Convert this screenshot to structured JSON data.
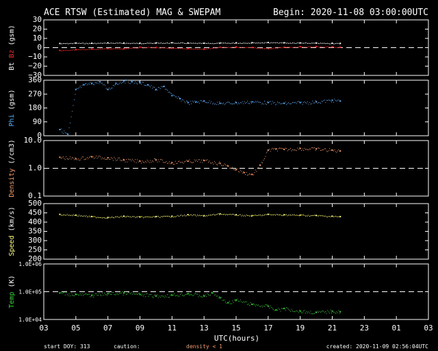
{
  "header": {
    "title": "ACE RTSW (Estimated) MAG & SWEPAM",
    "begin": "Begin: 2020-11-08 03:00:00UTC"
  },
  "footer": {
    "start_doy": "start DOY: 313",
    "caution": "caution:",
    "density_note": "density < 1",
    "created": "created: 2020-11-09 02:56:04UTC"
  },
  "colors": {
    "bt": "#ffffff",
    "bz": "#ff2020",
    "phi": "#4fb0ff",
    "density": "#ff9a5c",
    "speed": "#ffff66",
    "temp": "#22dd22",
    "axis": "#ffffff"
  },
  "chart_data": {
    "type": "scatter",
    "xlabel": "UTC(hours)",
    "x_ticks": [
      "03",
      "05",
      "07",
      "09",
      "11",
      "13",
      "15",
      "17",
      "19",
      "21",
      "23",
      "01",
      "03"
    ],
    "xlim_hours": [
      0,
      24
    ],
    "panels": [
      {
        "id": "mag",
        "ylabel_parts": [
          {
            "text": "Bt",
            "color": "#ffffff"
          },
          {
            "text": "Bz",
            "color": "#ff2020"
          },
          {
            "text": "(gsm)",
            "color": "#ffffff"
          }
        ],
        "ylim": [
          -30,
          30
        ],
        "ticks": [
          "30",
          "20",
          "10",
          "0",
          "−10",
          "−20",
          "−30"
        ],
        "tick_values": [
          30,
          20,
          10,
          0,
          -10,
          -20,
          -30
        ],
        "scale": "linear",
        "reference_line": 0,
        "series": [
          {
            "name": "Bt",
            "color": "#ffffff",
            "x": [
              1.0,
              2,
              3,
              4,
              5,
              6,
              7,
              8,
              9,
              10,
              11,
              12,
              13,
              14,
              15,
              16,
              17,
              18,
              18.5
            ],
            "y": [
              4.5,
              5,
              4.8,
              5.2,
              5,
              4.9,
              5.1,
              5.3,
              5,
              4.8,
              5,
              5.2,
              5.4,
              5.6,
              5.3,
              5.1,
              5,
              4.8,
              4.6
            ]
          },
          {
            "name": "Bz",
            "color": "#ff2020",
            "x": [
              1.0,
              2,
              3,
              4,
              5,
              6,
              7,
              8,
              9,
              10,
              11,
              12,
              13,
              14,
              15,
              16,
              17,
              18,
              18.5
            ],
            "y": [
              -3,
              -2,
              -1.5,
              -1,
              -1.2,
              0.5,
              0.2,
              -0.5,
              -1,
              -1.5,
              0.5,
              0.8,
              0.2,
              -1,
              0.5,
              1,
              1.2,
              1,
              0.5
            ]
          }
        ]
      },
      {
        "id": "phi",
        "ylabel_parts": [
          {
            "text": "Phi",
            "color": "#4fb0ff"
          },
          {
            "text": "(gsm)",
            "color": "#ffffff"
          }
        ],
        "ylim": [
          0,
          360
        ],
        "ticks": [
          "360",
          "270",
          "180",
          "90",
          "0"
        ],
        "tick_values": [
          360,
          270,
          180,
          90,
          0
        ],
        "scale": "linear",
        "series": [
          {
            "name": "Phi",
            "color": "#4fb0ff",
            "x": [
              1.0,
              1.5,
              2,
              2.5,
              3,
              3.5,
              4,
              4.5,
              5,
              5.5,
              6,
              6.5,
              7,
              7.5,
              8,
              8.5,
              9,
              9.5,
              10,
              11,
              12,
              13,
              14,
              15,
              16,
              17,
              18,
              18.5
            ],
            "y": [
              40,
              10,
              300,
              330,
              340,
              350,
              300,
              340,
              355,
              350,
              345,
              330,
              300,
              320,
              260,
              240,
              215,
              220,
              225,
              210,
              215,
              220,
              215,
              210,
              215,
              220,
              230,
              225
            ]
          }
        ]
      },
      {
        "id": "density",
        "ylabel_parts": [
          {
            "text": "Density",
            "color": "#ff9a5c"
          },
          {
            "text": "(/cm3)",
            "color": "#ffffff"
          }
        ],
        "ylim": [
          0.1,
          10
        ],
        "ticks": [
          "10.0",
          "1.0",
          "0.1"
        ],
        "tick_values": [
          10,
          1,
          0.1
        ],
        "scale": "log",
        "reference_line": 1,
        "series": [
          {
            "name": "Density",
            "color": "#ff9a5c",
            "x": [
              1.0,
              2,
              3,
              4,
              5,
              6,
              7,
              8,
              9,
              10,
              11,
              11.5,
              12,
              12.5,
              13,
              13.5,
              14,
              14.5,
              15,
              16,
              17,
              18,
              18.5
            ],
            "y": [
              2.5,
              2.2,
              2.6,
              2.4,
              2.0,
              1.8,
              2.0,
              1.6,
              1.8,
              1.9,
              1.5,
              1.2,
              0.9,
              0.7,
              0.6,
              1.3,
              4.5,
              5.0,
              4.8,
              5.2,
              5.0,
              4.5,
              4.2
            ]
          }
        ]
      },
      {
        "id": "speed",
        "ylabel_parts": [
          {
            "text": "Speed",
            "color": "#ffff66"
          },
          {
            "text": "(km/s)",
            "color": "#ffffff"
          }
        ],
        "ylim": [
          200,
          500
        ],
        "ticks": [
          "500",
          "450",
          "400",
          "350",
          "300",
          "250",
          "200"
        ],
        "tick_values": [
          500,
          450,
          400,
          350,
          300,
          250,
          200
        ],
        "scale": "linear",
        "series": [
          {
            "name": "Speed",
            "color": "#ffff66",
            "x": [
              1.0,
              2,
              3,
              4,
              5,
              6,
              7,
              8,
              9,
              10,
              11,
              12,
              13,
              14,
              15,
              16,
              17,
              18,
              18.5
            ],
            "y": [
              442,
              438,
              430,
              425,
              432,
              428,
              430,
              432,
              440,
              435,
              445,
              440,
              435,
              442,
              440,
              438,
              436,
              432,
              430
            ]
          }
        ]
      },
      {
        "id": "temp",
        "ylabel_parts": [
          {
            "text": "Temp",
            "color": "#22dd22"
          },
          {
            "text": "(K)",
            "color": "#ffffff"
          }
        ],
        "ylim": [
          10000,
          1000000
        ],
        "ticks": [
          "1.0E+06",
          "1.0E+05",
          "1.0E+04"
        ],
        "tick_values": [
          1000000,
          100000,
          10000
        ],
        "scale": "log",
        "reference_line": 100000,
        "series": [
          {
            "name": "Temp",
            "color": "#22dd22",
            "x": [
              1.0,
              2,
              3,
              4,
              5,
              6,
              7,
              8,
              9,
              10,
              10.5,
              11,
              11.5,
              12,
              13,
              14,
              14.5,
              15,
              16,
              17,
              18,
              18.5
            ],
            "y": [
              90000,
              80000,
              75000,
              85000,
              90000,
              80000,
              70000,
              75000,
              85000,
              70000,
              90000,
              60000,
              40000,
              50000,
              35000,
              30000,
              22000,
              25000,
              20000,
              18000,
              20000,
              19000
            ]
          }
        ]
      }
    ]
  }
}
